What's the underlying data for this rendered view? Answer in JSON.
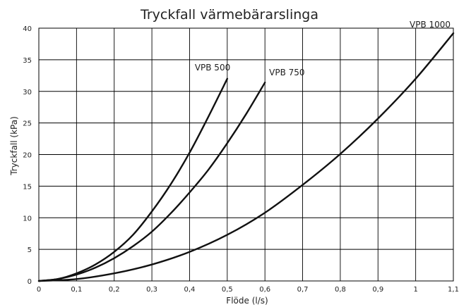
{
  "chart_data": {
    "type": "line",
    "title": "Tryckfall värmebärarslinga",
    "xlabel": "Flöde (l/s)",
    "ylabel": "Tryckfall (kPa)",
    "xlim": [
      0,
      1.1
    ],
    "ylim": [
      0,
      40
    ],
    "xticks": [
      0,
      0.1,
      0.2,
      0.3,
      0.4,
      0.5,
      0.6,
      0.7,
      0.8,
      0.9,
      1.0,
      1.1
    ],
    "xtick_labels": [
      "0",
      "0,1",
      "0,2",
      "0,3",
      "0,4",
      "0,5",
      "0,6",
      "0,7",
      "0,8",
      "0,9",
      "1",
      "1,1"
    ],
    "yticks": [
      0,
      5,
      10,
      15,
      20,
      25,
      30,
      35,
      40
    ],
    "ytick_labels": [
      "0",
      "5",
      "10",
      "15",
      "20",
      "25",
      "30",
      "35",
      "40"
    ],
    "grid": true,
    "series": [
      {
        "name": "VPB 500",
        "x": [
          0,
          0.05,
          0.1,
          0.15,
          0.2,
          0.25,
          0.3,
          0.35,
          0.4,
          0.45,
          0.5
        ],
        "y": [
          0,
          0.3,
          1.2,
          2.6,
          4.6,
          7.3,
          11.0,
          15.3,
          20.3,
          26.0,
          32.0
        ]
      },
      {
        "name": "VPB 750",
        "x": [
          0,
          0.05,
          0.1,
          0.15,
          0.2,
          0.25,
          0.3,
          0.35,
          0.4,
          0.45,
          0.5,
          0.55,
          0.6
        ],
        "y": [
          0,
          0.3,
          1.0,
          2.1,
          3.6,
          5.5,
          7.8,
          10.7,
          14.0,
          17.6,
          21.8,
          26.4,
          31.4
        ]
      },
      {
        "name": "VPB 1000",
        "x": [
          0,
          0.1,
          0.2,
          0.3,
          0.4,
          0.5,
          0.6,
          0.7,
          0.8,
          0.9,
          1.0,
          1.1
        ],
        "y": [
          0,
          0.3,
          1.2,
          2.6,
          4.6,
          7.3,
          10.8,
          15.2,
          20.1,
          25.7,
          32.0,
          39.2
        ]
      }
    ]
  }
}
